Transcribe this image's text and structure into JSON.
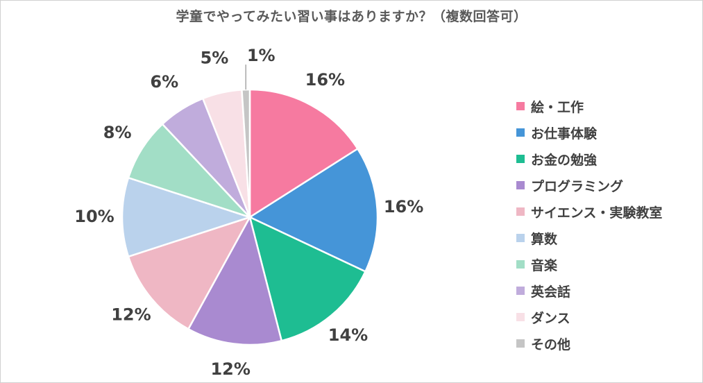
{
  "chart_data": {
    "type": "pie",
    "title": "学童でやってみたい習い事はありますか？（複数回答可）",
    "categories": [
      "絵・工作",
      "お仕事体験",
      "お金の勉強",
      "プログラミング",
      "サイエンス・実験教室",
      "算数",
      "音楽",
      "英会話",
      "ダンス",
      "その他"
    ],
    "values": [
      16,
      16,
      14,
      12,
      12,
      10,
      8,
      6,
      5,
      1
    ],
    "data_labels": [
      "16%",
      "16%",
      "14%",
      "12%",
      "12%",
      "10%",
      "8%",
      "6%",
      "5%",
      "1%"
    ],
    "colors": [
      "#f67aa0",
      "#4595d8",
      "#1ebd92",
      "#a98ad0",
      "#efb7c4",
      "#bad2ec",
      "#a2dec6",
      "#c0acdc",
      "#f8e0e6",
      "#c5c5c5"
    ],
    "legend_position": "right",
    "start": "12 o'clock, clockwise"
  }
}
